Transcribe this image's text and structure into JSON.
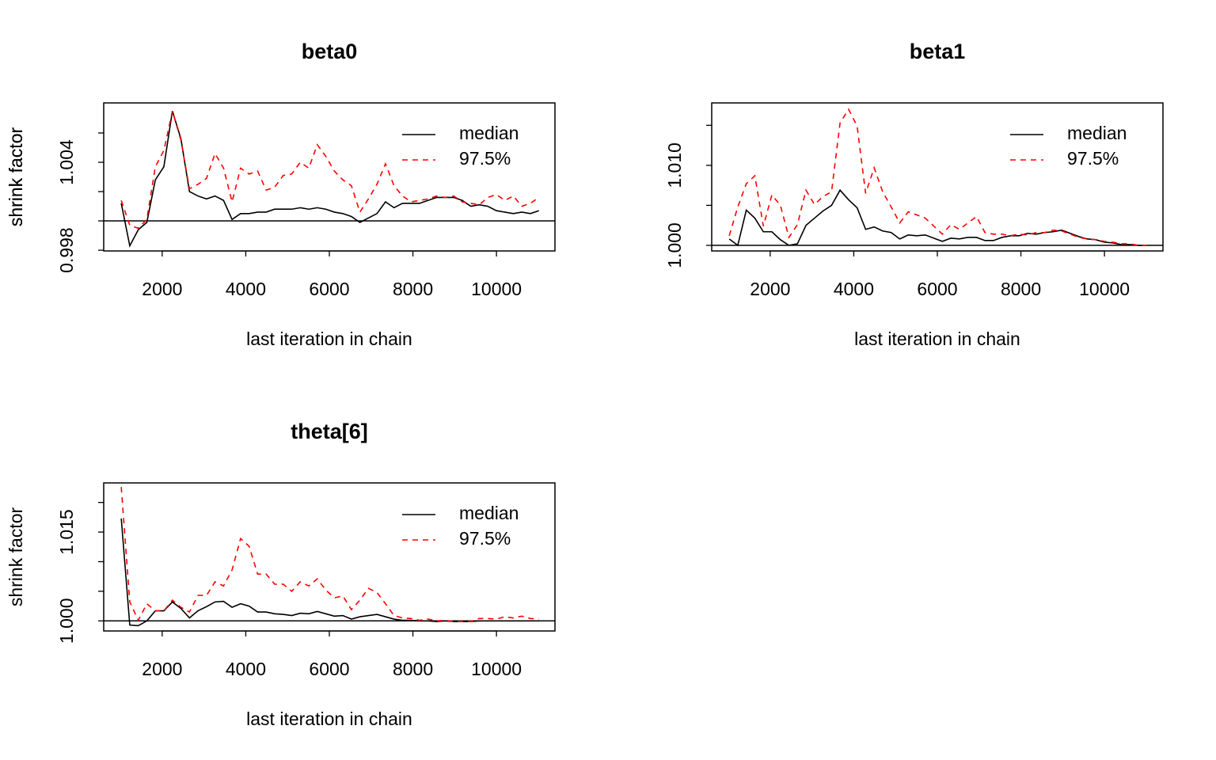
{
  "chart_data": [
    {
      "type": "line",
      "title": "beta0",
      "xlabel": "last iteration in chain",
      "ylabel": "shrink factor",
      "x": [
        1020,
        1224,
        1428,
        1632,
        1836,
        2040,
        2244,
        2448,
        2652,
        2856,
        3060,
        3264,
        3468,
        3672,
        3876,
        4080,
        4284,
        4488,
        4692,
        4896,
        5100,
        5304,
        5508,
        5712,
        5916,
        6120,
        6324,
        6528,
        6732,
        6936,
        7140,
        7344,
        7548,
        7752,
        7956,
        8160,
        8364,
        8568,
        8772,
        8976,
        9180,
        9384,
        9588,
        9792,
        9996,
        10200,
        10404,
        10608,
        10812,
        11016
      ],
      "series": [
        {
          "name": "median",
          "color": "#000000",
          "linestyle": "solid",
          "values": [
            1.0012,
            0.9983,
            0.9994,
            0.9999,
            1.0028,
            1.0037,
            1.0075,
            1.0056,
            1.002,
            1.0017,
            1.0015,
            1.0017,
            1.0014,
            1.0001,
            1.0005,
            1.0005,
            1.0006,
            1.0006,
            1.0008,
            1.0008,
            1.0008,
            1.0009,
            1.0008,
            1.0009,
            1.0008,
            1.0006,
            1.0005,
            1.0003,
            0.9999,
            1.0002,
            1.0005,
            1.0013,
            1.0009,
            1.0012,
            1.0012,
            1.0012,
            1.0014,
            1.0016,
            1.0016,
            1.0016,
            1.0014,
            1.001,
            1.0011,
            1.001,
            1.0007,
            1.0006,
            1.0005,
            1.0006,
            1.0005,
            1.0007
          ]
        },
        {
          "name": "97.5%",
          "color": "#ff0000",
          "linestyle": "dashed",
          "values": [
            1.0014,
            0.9997,
            0.9995,
            1.0001,
            1.0037,
            1.0048,
            1.0075,
            1.0055,
            1.0022,
            1.0025,
            1.0029,
            1.0046,
            1.0036,
            1.0013,
            1.0036,
            1.0032,
            1.0034,
            1.0021,
            1.0023,
            1.0031,
            1.0032,
            1.004,
            1.0036,
            1.0052,
            1.0044,
            1.0034,
            1.0028,
            1.0024,
            1.0006,
            1.0015,
            1.0025,
            1.0039,
            1.0024,
            1.0017,
            1.0013,
            1.0014,
            1.0015,
            1.0017,
            1.0016,
            1.0017,
            1.0013,
            1.0012,
            1.0011,
            1.0016,
            1.0018,
            1.0014,
            1.0017,
            1.001,
            1.0012,
            1.0016
          ]
        }
      ],
      "xlim": [
        600,
        11400
      ],
      "xticks": [
        2000,
        4000,
        6000,
        8000,
        10000
      ],
      "ylim": [
        0.99795,
        1.00805
      ],
      "yticks": [
        0.998,
        {
          "value": 1.0,
          "label": null
        },
        {
          "value": 1.002,
          "label": null
        },
        1.004,
        {
          "value": 1.006,
          "label": null
        }
      ],
      "hline": 1,
      "legend": "topright"
    },
    {
      "type": "line",
      "title": "beta1",
      "xlabel": "last iteration in chain",
      "ylabel": "shrink factor",
      "x": [
        1020,
        1224,
        1428,
        1632,
        1836,
        2040,
        2244,
        2448,
        2652,
        2856,
        3060,
        3264,
        3468,
        3672,
        3876,
        4080,
        4284,
        4488,
        4692,
        4896,
        5100,
        5304,
        5508,
        5712,
        5916,
        6120,
        6324,
        6528,
        6732,
        6936,
        7140,
        7344,
        7548,
        7752,
        7956,
        8160,
        8364,
        8568,
        8772,
        8976,
        9180,
        9384,
        9588,
        9792,
        9996,
        10200,
        10404,
        10608,
        10812,
        11016
      ],
      "series": [
        {
          "name": "median",
          "color": "#000000",
          "linestyle": "solid",
          "values": [
            1.0008,
            1.0,
            1.0044,
            1.0034,
            1.0017,
            1.0017,
            1.0007,
            1.0,
            1.0002,
            1.0025,
            1.0034,
            1.0043,
            1.005,
            1.0069,
            1.0057,
            1.0047,
            1.002,
            1.0023,
            1.0018,
            1.0016,
            1.0008,
            1.0013,
            1.0012,
            1.0013,
            1.0009,
            1.0005,
            1.0009,
            1.0008,
            1.001,
            1.001,
            1.0006,
            1.0006,
            1.001,
            1.0012,
            1.0012,
            1.0015,
            1.0014,
            1.0016,
            1.0017,
            1.0019,
            1.0015,
            1.0011,
            1.0008,
            1.0007,
            1.0004,
            1.0003,
            1.0001,
            1.0001,
            1.0,
            1.0
          ]
        },
        {
          "name": "97.5%",
          "color": "#ff0000",
          "linestyle": "dashed",
          "values": [
            1.0012,
            1.0048,
            1.0077,
            1.0087,
            1.0024,
            1.0063,
            1.005,
            1.001,
            1.0026,
            1.0069,
            1.0051,
            1.0061,
            1.0067,
            1.0153,
            1.017,
            1.0149,
            1.0065,
            1.0097,
            1.0067,
            1.0048,
            1.0028,
            1.0042,
            1.0038,
            1.0034,
            1.0024,
            1.0014,
            1.0026,
            1.002,
            1.0028,
            1.0036,
            1.0016,
            1.0014,
            1.0014,
            1.0012,
            1.0014,
            1.0013,
            1.0016,
            1.0016,
            1.0019,
            1.0018,
            1.0014,
            1.001,
            1.0008,
            1.0007,
            1.0005,
            1.0004,
            1.0002,
            1.0002,
            1.0,
            1.0
          ]
        }
      ],
      "xlim": [
        600,
        11400
      ],
      "xticks": [
        2000,
        4000,
        6000,
        8000,
        10000
      ],
      "ylim": [
        0.9993,
        1.0178
      ],
      "yticks": [
        {
          "value": 1.0,
          "label": "1.000"
        },
        {
          "value": 1.005,
          "label": null
        },
        {
          "value": 1.01,
          "label": "1.010"
        },
        {
          "value": 1.015,
          "label": null
        }
      ],
      "hline": 1,
      "legend": "topright"
    },
    {
      "type": "line",
      "title": "theta[6]",
      "xlabel": "last iteration in chain",
      "ylabel": "shrink factor",
      "x": [
        1020,
        1224,
        1428,
        1632,
        1836,
        2040,
        2244,
        2448,
        2652,
        2856,
        3060,
        3264,
        3468,
        3672,
        3876,
        4080,
        4284,
        4488,
        4692,
        4896,
        5100,
        5304,
        5508,
        5712,
        5916,
        6120,
        6324,
        6528,
        6732,
        6936,
        7140,
        7344,
        7548,
        7752,
        7956,
        8160,
        8364,
        8568,
        8772,
        8976,
        9180,
        9384,
        9588,
        9792,
        9996,
        10200,
        10404,
        10608,
        10812,
        11016
      ],
      "series": [
        {
          "name": "median",
          "color": "#000000",
          "linestyle": "solid",
          "values": [
            1.0173,
            0.9993,
            0.9992,
            1.0,
            1.0017,
            1.0017,
            1.0032,
            1.0021,
            1.0005,
            1.0017,
            1.0024,
            1.0032,
            1.0033,
            1.0023,
            1.0029,
            1.0025,
            1.0015,
            1.0015,
            1.0012,
            1.0011,
            1.0009,
            1.0013,
            1.0012,
            1.0016,
            1.0012,
            1.0008,
            1.0009,
            1.0003,
            1.0007,
            1.0009,
            1.0011,
            1.0007,
            1.0003,
            1.0001,
            1.0001,
            1.0,
            1.0,
            0.9999,
            1.0,
            0.9999,
            0.9999,
            0.9999,
            1.0,
            1.0,
            1.0,
            1.0,
            1.0,
            1.0,
            1.0,
            1.0
          ]
        },
        {
          "name": "97.5%",
          "color": "#ff0000",
          "linestyle": "dashed",
          "values": [
            1.0226,
            1.0032,
            1.0001,
            1.0029,
            1.0017,
            1.0017,
            1.0035,
            1.0023,
            1.0015,
            1.0043,
            1.0043,
            1.0066,
            1.0059,
            1.0086,
            1.0139,
            1.0126,
            1.0079,
            1.0079,
            1.0062,
            1.0062,
            1.005,
            1.0066,
            1.0059,
            1.0071,
            1.0052,
            1.0039,
            1.0042,
            1.0019,
            1.0035,
            1.0055,
            1.0048,
            1.0029,
            1.0009,
            1.0005,
            1.0004,
            1.0001,
            1.0003,
            1.0,
            1.0001,
            0.9999,
            0.9999,
            0.9999,
            1.0004,
            1.0004,
            1.0003,
            1.0007,
            1.0005,
            1.0008,
            1.0004,
            1.0003
          ]
        }
      ],
      "xlim": [
        600,
        11400
      ],
      "xticks": [
        2000,
        4000,
        6000,
        8000,
        10000
      ],
      "ylim": [
        0.9983,
        1.0233
      ],
      "yticks": [
        {
          "value": 1.0,
          "label": "1.000"
        },
        {
          "value": 1.005,
          "label": null
        },
        {
          "value": 1.01,
          "label": null
        },
        1.015,
        {
          "value": 1.02,
          "label": null
        }
      ],
      "hline": 1,
      "legend": "topright"
    }
  ]
}
